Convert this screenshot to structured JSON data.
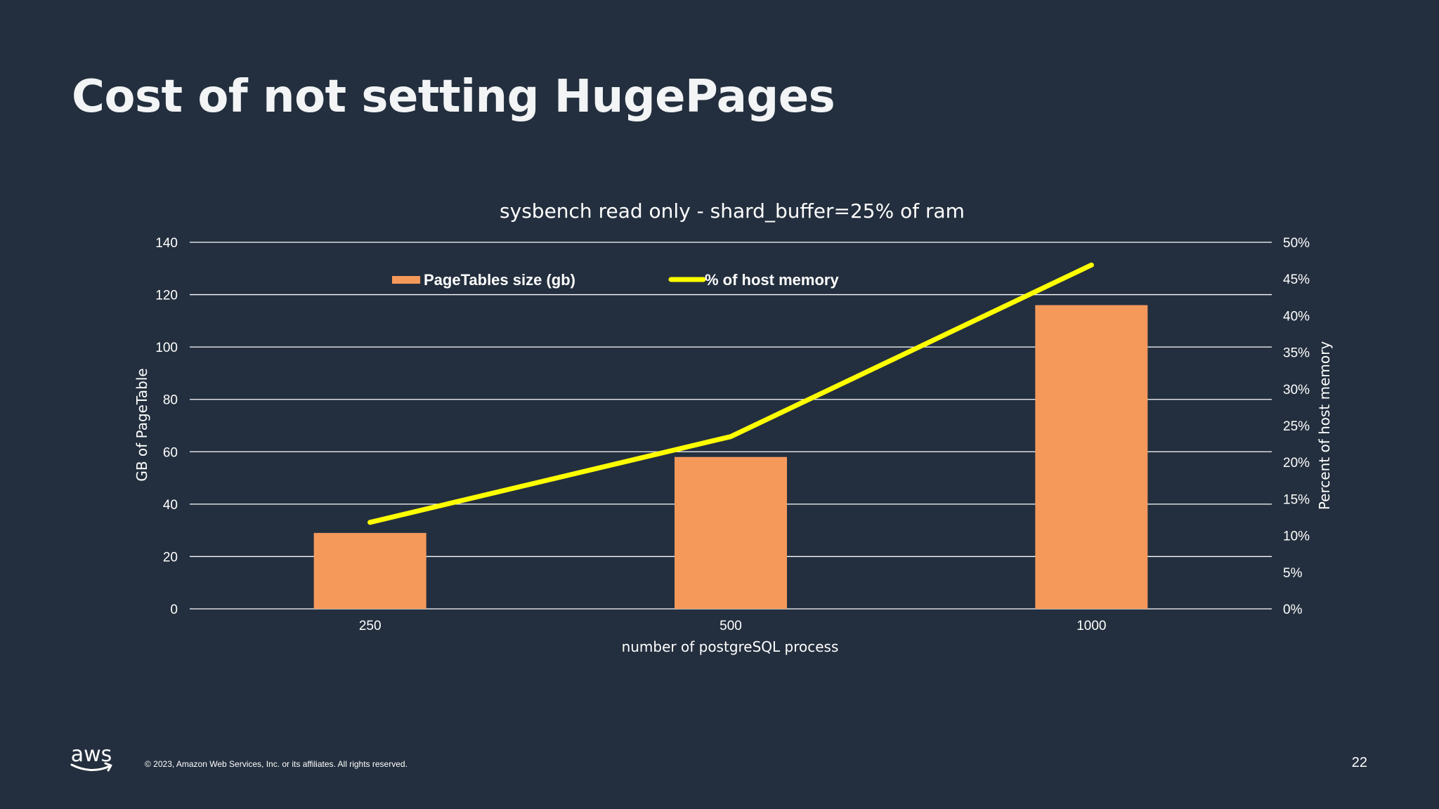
{
  "slide": {
    "title": "Cost of not setting HugePages",
    "copyright": "© 2023, Amazon Web Services, Inc. or its affiliates. All rights reserved.",
    "page_number": "22",
    "logo_text": "aws"
  },
  "colors": {
    "background": "#232F3E",
    "bar": "#F5995B",
    "line": "#FFFF00",
    "text": "#FFFFFF"
  },
  "chart_data": {
    "type": "bar",
    "title": "sysbench read only - shard_buffer=25% of ram",
    "xlabel": "number of postgreSQL process",
    "ylabel": "GB of PageTable",
    "y2label": "Percent of host memory",
    "categories": [
      "250",
      "500",
      "1000"
    ],
    "ylim": [
      0,
      140
    ],
    "yticks": [
      0,
      20,
      40,
      60,
      80,
      100,
      120,
      140
    ],
    "y2lim": [
      0,
      50
    ],
    "y2ticks": [
      "0%",
      "5%",
      "10%",
      "15%",
      "20%",
      "25%",
      "30%",
      "35%",
      "40%",
      "45%",
      "50%"
    ],
    "grid": true,
    "legend_position": "top",
    "series": [
      {
        "name": "PageTables size (gb)",
        "type": "bar",
        "axis": "left",
        "values": [
          29,
          58,
          116
        ]
      },
      {
        "name": "% of host memory",
        "type": "line",
        "axis": "right",
        "values": [
          11.8,
          23.5,
          46.9
        ]
      }
    ]
  }
}
